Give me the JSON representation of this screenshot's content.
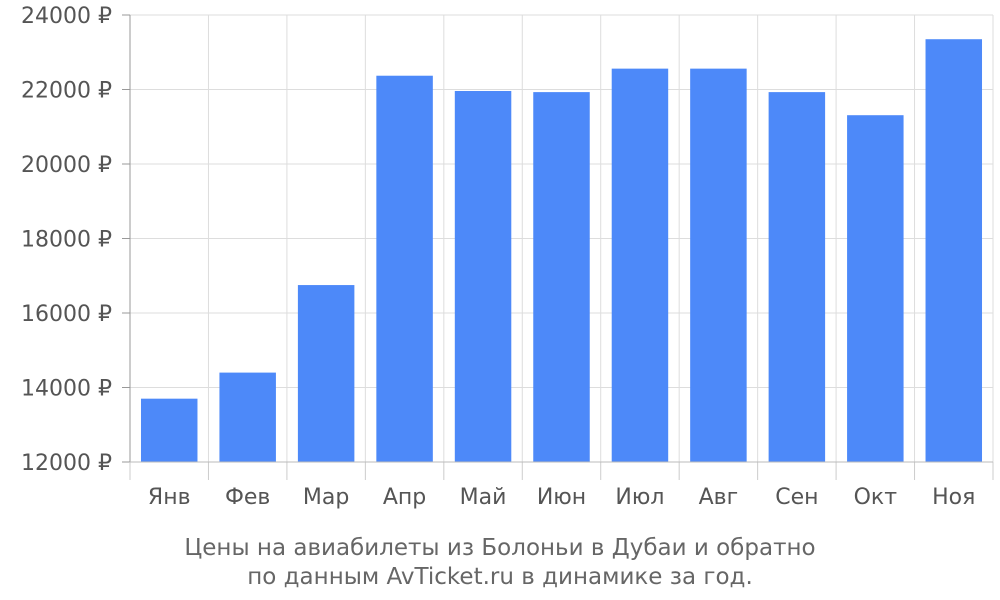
{
  "chart_data": {
    "type": "bar",
    "categories": [
      "Янв",
      "Фев",
      "Мар",
      "Апр",
      "Май",
      "Июн",
      "Июл",
      "Авг",
      "Сен",
      "Окт",
      "Ноя"
    ],
    "values": [
      13700,
      14400,
      16750,
      22370,
      21960,
      21930,
      22560,
      22560,
      21930,
      21310,
      23350
    ],
    "yticks": [
      "12000 ₽",
      "14000 ₽",
      "16000 ₽",
      "18000 ₽",
      "20000 ₽",
      "22000 ₽",
      "24000 ₽"
    ],
    "ylim": [
      12000,
      24000
    ],
    "bar_color": "#4d89f9",
    "grid": true,
    "title_line1": "Цены на авиабилеты из Болоньи в Дубаи и обратно",
    "title_line2": "по данным AvTicket.ru в динамике за год."
  }
}
